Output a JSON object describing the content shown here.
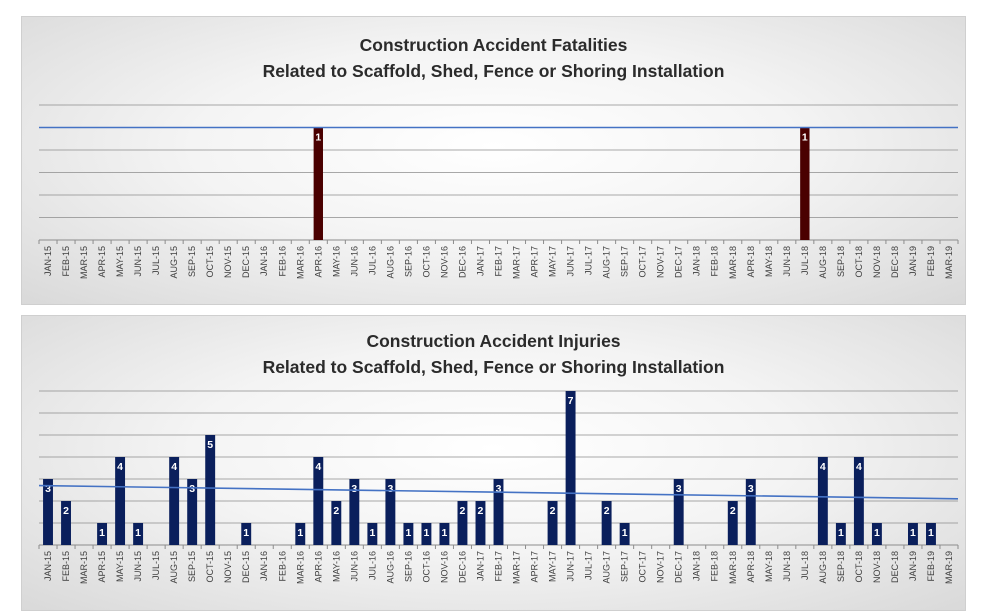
{
  "chart_data": [
    {
      "type": "bar",
      "title": "Construction Accident Fatalities",
      "subtitle": "Related to Scaffold, Shed, Fence or Shoring Installation",
      "categories": [
        "JAN-15",
        "FEB-15",
        "MAR-15",
        "APR-15",
        "MAY-15",
        "JUN-15",
        "JUL-15",
        "AUG-15",
        "SEP-15",
        "OCT-15",
        "NOV-15",
        "DEC-15",
        "JAN-16",
        "FEB-16",
        "MAR-16",
        "APR-16",
        "MAY-16",
        "JUN-16",
        "JUL-16",
        "AUG-16",
        "SEP-16",
        "OCT-16",
        "NOV-16",
        "DEC-16",
        "JAN-17",
        "FEB-17",
        "MAR-17",
        "APR-17",
        "MAY-17",
        "JUN-17",
        "JUL-17",
        "AUG-17",
        "SEP-17",
        "OCT-17",
        "NOV-17",
        "DEC-17",
        "JAN-18",
        "FEB-18",
        "MAR-18",
        "APR-18",
        "MAY-18",
        "JUN-18",
        "JUL-18",
        "AUG-18",
        "SEP-18",
        "OCT-18",
        "NOV-18",
        "DEC-18",
        "JAN-19",
        "FEB-19",
        "MAR-19"
      ],
      "values": [
        0,
        0,
        0,
        0,
        0,
        0,
        0,
        0,
        0,
        0,
        0,
        0,
        0,
        0,
        0,
        1,
        0,
        0,
        0,
        0,
        0,
        0,
        0,
        0,
        0,
        0,
        0,
        0,
        0,
        0,
        0,
        0,
        0,
        0,
        0,
        0,
        0,
        0,
        0,
        0,
        0,
        0,
        1,
        0,
        0,
        0,
        0,
        0,
        0,
        0,
        0
      ],
      "trendline": [
        1,
        1
      ],
      "ylim": [
        0,
        1.2
      ],
      "grid": true,
      "colors": {
        "bar": "#4a0000",
        "trend": "#4472c4",
        "grid": "#8c8c8c"
      }
    },
    {
      "type": "bar",
      "title": "Construction Accident Injuries",
      "subtitle": "Related to Scaffold, Shed, Fence or Shoring Installation",
      "categories": [
        "JAN-15",
        "FEB-15",
        "MAR-15",
        "APR-15",
        "MAY-15",
        "JUN-15",
        "JUL-15",
        "AUG-15",
        "SEP-15",
        "OCT-15",
        "NOV-15",
        "DEC-15",
        "JAN-16",
        "FEB-16",
        "MAR-16",
        "APR-16",
        "MAY-16",
        "JUN-16",
        "JUL-16",
        "AUG-16",
        "SEP-16",
        "OCT-16",
        "NOV-16",
        "DEC-16",
        "JAN-17",
        "FEB-17",
        "MAR-17",
        "APR-17",
        "MAY-17",
        "JUN-17",
        "JUL-17",
        "AUG-17",
        "SEP-17",
        "OCT-17",
        "NOV-17",
        "DEC-17",
        "JAN-18",
        "FEB-18",
        "MAR-18",
        "APR-18",
        "MAY-18",
        "JUN-18",
        "JUL-18",
        "AUG-18",
        "SEP-18",
        "OCT-18",
        "NOV-18",
        "DEC-18",
        "JAN-19",
        "FEB-19",
        "MAR-19"
      ],
      "values": [
        3,
        2,
        0,
        1,
        4,
        1,
        0,
        4,
        3,
        5,
        0,
        1,
        0,
        0,
        1,
        4,
        2,
        3,
        1,
        3,
        1,
        1,
        1,
        2,
        2,
        3,
        0,
        0,
        2,
        7,
        0,
        2,
        1,
        0,
        0,
        3,
        0,
        0,
        2,
        3,
        0,
        0,
        0,
        4,
        1,
        4,
        1,
        0,
        1,
        1,
        0
      ],
      "trendline": [
        2.7,
        2.1
      ],
      "ylim": [
        0,
        7
      ],
      "grid": true,
      "colors": {
        "bar": "#0a1f5c",
        "trend": "#4472c4",
        "grid": "#8c8c8c"
      }
    }
  ]
}
